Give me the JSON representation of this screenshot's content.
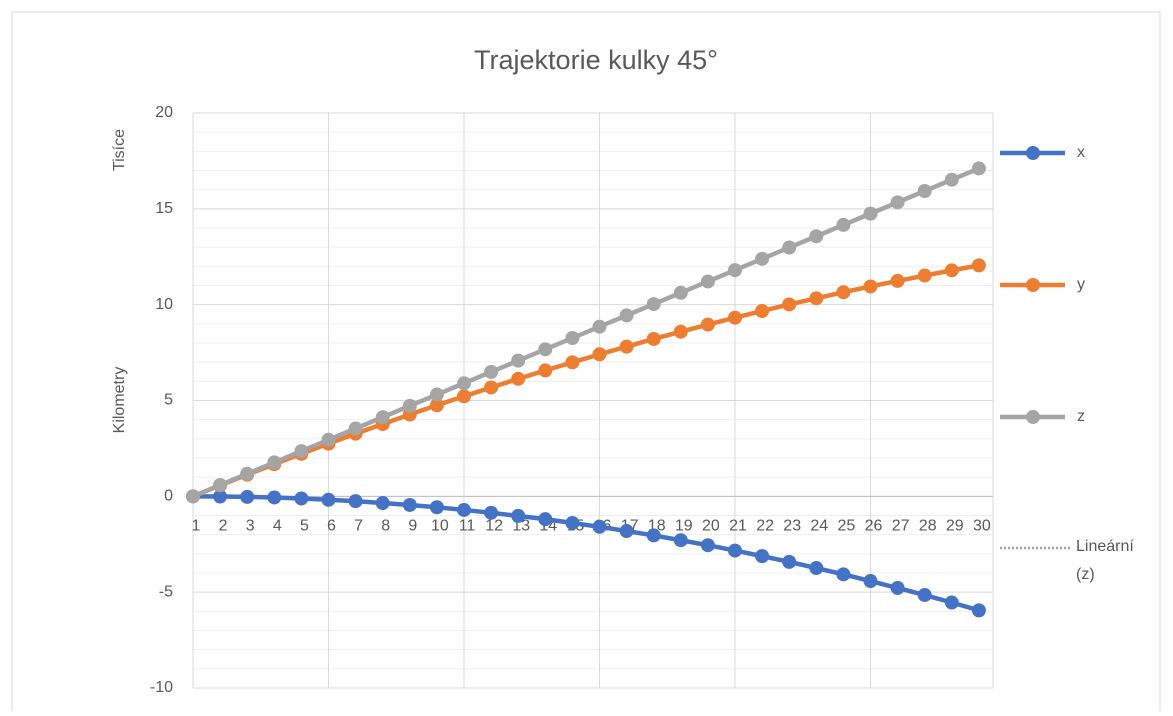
{
  "chart_data": {
    "type": "line",
    "title": "Trajektorie kulky 45°",
    "y_axis_label": "Kilometry",
    "y_display_units": "Tisíce",
    "categories": [
      1,
      2,
      3,
      4,
      5,
      6,
      7,
      8,
      9,
      10,
      11,
      12,
      13,
      14,
      15,
      16,
      17,
      18,
      19,
      20,
      21,
      22,
      23,
      24,
      25,
      26,
      27,
      28,
      29,
      30
    ],
    "series": [
      {
        "name": "x",
        "color": "#4472c4",
        "values": [
          0,
          -0.01,
          -0.03,
          -0.06,
          -0.11,
          -0.18,
          -0.25,
          -0.35,
          -0.45,
          -0.57,
          -0.71,
          -0.86,
          -1.02,
          -1.19,
          -1.39,
          -1.59,
          -1.81,
          -2.04,
          -2.29,
          -2.55,
          -2.83,
          -3.12,
          -3.42,
          -3.74,
          -4.07,
          -4.42,
          -4.78,
          -5.15,
          -5.54,
          -5.95
        ]
      },
      {
        "name": "y",
        "color": "#ed7d31",
        "values": [
          0,
          0.57,
          1.13,
          1.68,
          2.22,
          2.75,
          3.27,
          3.77,
          4.27,
          4.75,
          5.22,
          5.68,
          6.13,
          6.57,
          6.99,
          7.41,
          7.81,
          8.21,
          8.59,
          8.96,
          9.32,
          9.67,
          10.01,
          10.33,
          10.65,
          10.95,
          11.24,
          11.52,
          11.79,
          12.05
        ]
      },
      {
        "name": "z",
        "color": "#a5a5a5",
        "values": [
          0,
          0.59,
          1.18,
          1.77,
          2.36,
          2.95,
          3.54,
          4.13,
          4.72,
          5.31,
          5.9,
          6.49,
          7.08,
          7.67,
          8.26,
          8.85,
          9.44,
          10.03,
          10.62,
          11.21,
          11.8,
          12.39,
          12.98,
          13.57,
          14.16,
          14.75,
          15.34,
          15.93,
          16.52,
          17.11
        ]
      }
    ],
    "trendline": {
      "name": "Lineární (z)",
      "color": "#a5a5a5"
    },
    "ylim": [
      -10,
      20
    ],
    "yticks": [
      -10,
      -5,
      0,
      5,
      10,
      15,
      20
    ],
    "grid": true,
    "minor_grid": true,
    "legend": "right"
  }
}
